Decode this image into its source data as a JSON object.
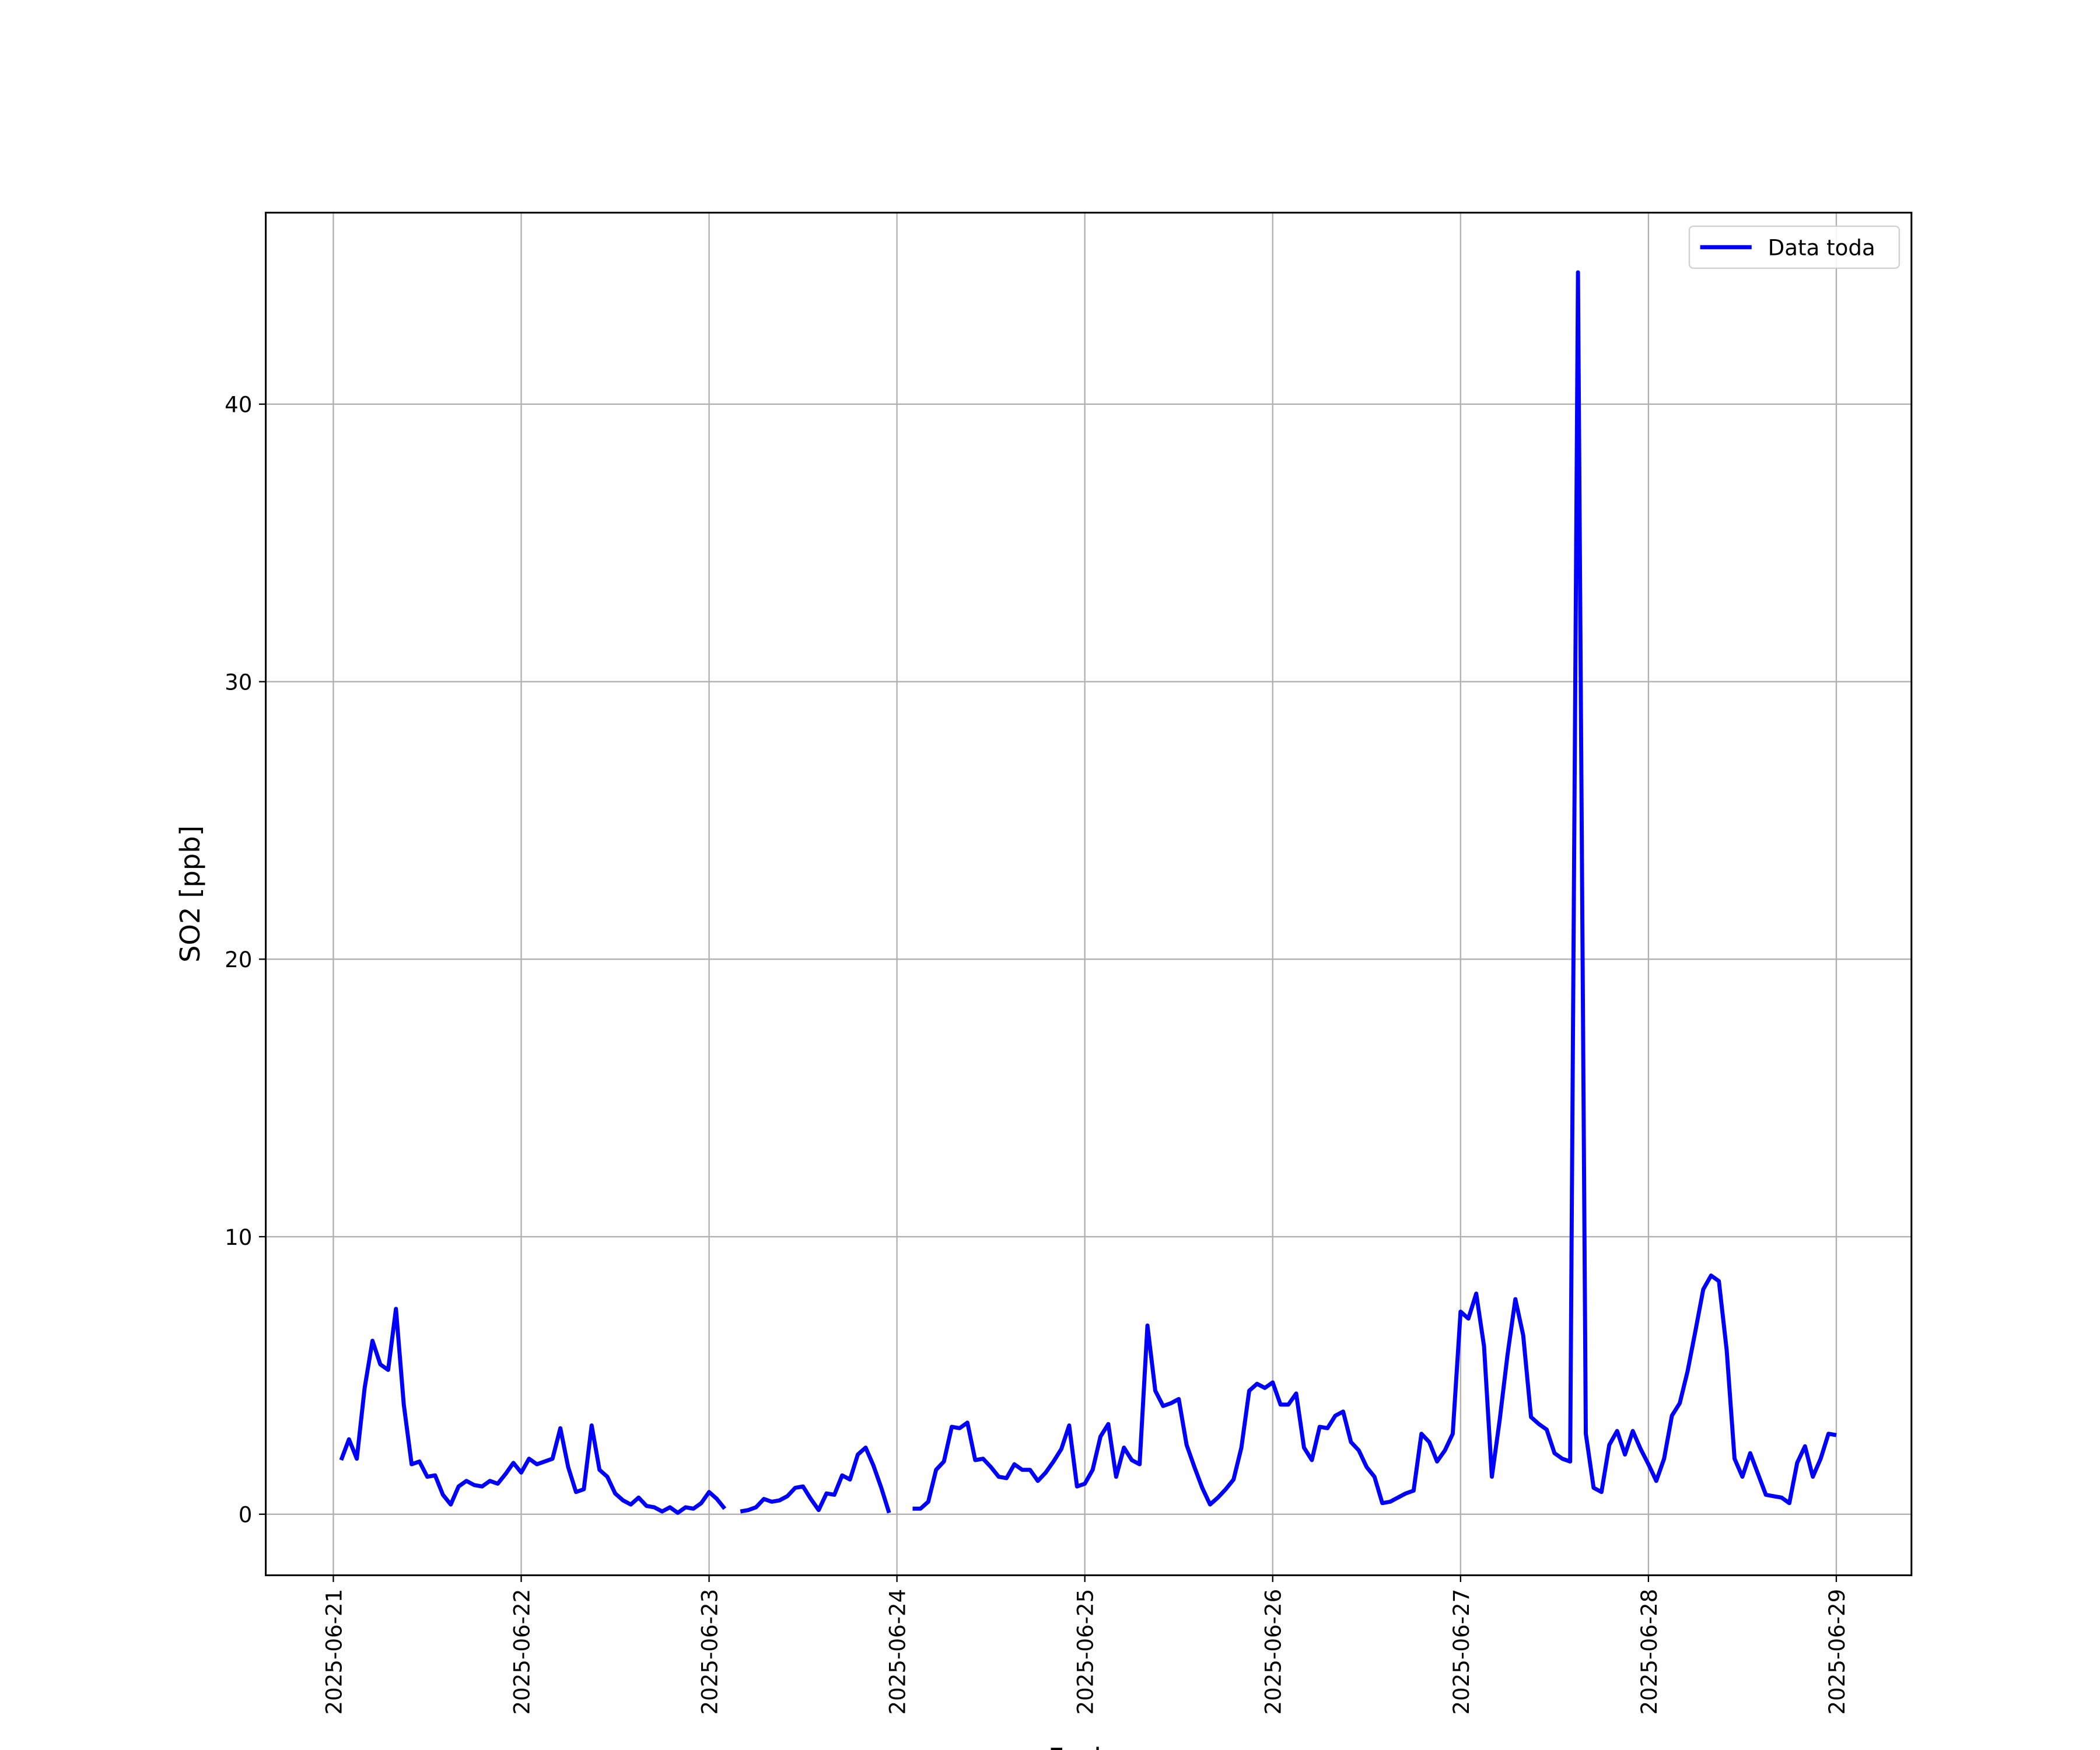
{
  "chart_data": {
    "type": "line",
    "xlabel": "Fecha",
    "ylabel": "SO2 [ppb]",
    "x": [
      "2025-06-21 01:00",
      "2025-06-21 02:00",
      "2025-06-21 03:00",
      "2025-06-21 04:00",
      "2025-06-21 05:00",
      "2025-06-21 06:00",
      "2025-06-21 07:00",
      "2025-06-21 08:00",
      "2025-06-21 09:00",
      "2025-06-21 10:00",
      "2025-06-21 11:00",
      "2025-06-21 12:00",
      "2025-06-21 13:00",
      "2025-06-21 14:00",
      "2025-06-21 15:00",
      "2025-06-21 16:00",
      "2025-06-21 17:00",
      "2025-06-21 18:00",
      "2025-06-21 19:00",
      "2025-06-21 20:00",
      "2025-06-21 21:00",
      "2025-06-21 22:00",
      "2025-06-21 23:00",
      "2025-06-22 00:00",
      "2025-06-22 01:00",
      "2025-06-22 02:00",
      "2025-06-22 03:00",
      "2025-06-22 04:00",
      "2025-06-22 05:00",
      "2025-06-22 06:00",
      "2025-06-22 07:00",
      "2025-06-22 08:00",
      "2025-06-22 09:00",
      "2025-06-22 10:00",
      "2025-06-22 11:00",
      "2025-06-22 12:00",
      "2025-06-22 13:00",
      "2025-06-22 14:00",
      "2025-06-22 15:00",
      "2025-06-22 16:00",
      "2025-06-22 17:00",
      "2025-06-22 18:00",
      "2025-06-22 19:00",
      "2025-06-22 20:00",
      "2025-06-22 21:00",
      "2025-06-22 22:00",
      "2025-06-22 23:00",
      "2025-06-23 00:00",
      "2025-06-23 01:00",
      "2025-06-23 02:00",
      "2025-06-23 03:00",
      "2025-06-23 04:00",
      "2025-06-23 05:00",
      "2025-06-23 06:00",
      "2025-06-23 07:00",
      "2025-06-23 08:00",
      "2025-06-23 09:00",
      "2025-06-23 10:00",
      "2025-06-23 11:00",
      "2025-06-23 12:00",
      "2025-06-23 13:00",
      "2025-06-23 14:00",
      "2025-06-23 15:00",
      "2025-06-23 16:00",
      "2025-06-23 17:00",
      "2025-06-23 18:00",
      "2025-06-23 19:00",
      "2025-06-23 20:00",
      "2025-06-23 21:00",
      "2025-06-23 22:00",
      "2025-06-23 23:00",
      "2025-06-24 00:00",
      "2025-06-24 01:00",
      "2025-06-24 02:00",
      "2025-06-24 03:00",
      "2025-06-24 04:00",
      "2025-06-24 05:00",
      "2025-06-24 06:00",
      "2025-06-24 07:00",
      "2025-06-24 08:00",
      "2025-06-24 09:00",
      "2025-06-24 10:00",
      "2025-06-24 11:00",
      "2025-06-24 12:00",
      "2025-06-24 13:00",
      "2025-06-24 14:00",
      "2025-06-24 15:00",
      "2025-06-24 16:00",
      "2025-06-24 17:00",
      "2025-06-24 18:00",
      "2025-06-24 19:00",
      "2025-06-24 20:00",
      "2025-06-24 21:00",
      "2025-06-24 22:00",
      "2025-06-24 23:00",
      "2025-06-25 00:00",
      "2025-06-25 01:00",
      "2025-06-25 02:00",
      "2025-06-25 03:00",
      "2025-06-25 04:00",
      "2025-06-25 05:00",
      "2025-06-25 06:00",
      "2025-06-25 07:00",
      "2025-06-25 08:00",
      "2025-06-25 09:00",
      "2025-06-25 10:00",
      "2025-06-25 11:00",
      "2025-06-25 12:00",
      "2025-06-25 13:00",
      "2025-06-25 14:00",
      "2025-06-25 15:00",
      "2025-06-25 16:00",
      "2025-06-25 17:00",
      "2025-06-25 18:00",
      "2025-06-25 19:00",
      "2025-06-25 20:00",
      "2025-06-25 21:00",
      "2025-06-25 22:00",
      "2025-06-25 23:00",
      "2025-06-26 00:00",
      "2025-06-26 01:00",
      "2025-06-26 02:00",
      "2025-06-26 03:00",
      "2025-06-26 04:00",
      "2025-06-26 05:00",
      "2025-06-26 06:00",
      "2025-06-26 07:00",
      "2025-06-26 08:00",
      "2025-06-26 09:00",
      "2025-06-26 10:00",
      "2025-06-26 11:00",
      "2025-06-26 12:00",
      "2025-06-26 13:00",
      "2025-06-26 14:00",
      "2025-06-26 15:00",
      "2025-06-26 16:00",
      "2025-06-26 17:00",
      "2025-06-26 18:00",
      "2025-06-26 19:00",
      "2025-06-26 20:00",
      "2025-06-26 21:00",
      "2025-06-26 22:00",
      "2025-06-26 23:00",
      "2025-06-27 00:00",
      "2025-06-27 01:00",
      "2025-06-27 02:00",
      "2025-06-27 03:00",
      "2025-06-27 04:00",
      "2025-06-27 05:00",
      "2025-06-27 06:00",
      "2025-06-27 07:00",
      "2025-06-27 08:00",
      "2025-06-27 09:00",
      "2025-06-27 10:00",
      "2025-06-27 11:00",
      "2025-06-27 12:00",
      "2025-06-27 13:00",
      "2025-06-27 14:00",
      "2025-06-27 15:00",
      "2025-06-27 16:00",
      "2025-06-27 17:00",
      "2025-06-27 18:00",
      "2025-06-27 19:00",
      "2025-06-27 20:00",
      "2025-06-27 21:00",
      "2025-06-27 22:00",
      "2025-06-27 23:00",
      "2025-06-28 00:00",
      "2025-06-28 01:00",
      "2025-06-28 02:00",
      "2025-06-28 03:00",
      "2025-06-28 04:00",
      "2025-06-28 05:00",
      "2025-06-28 06:00",
      "2025-06-28 07:00",
      "2025-06-28 08:00",
      "2025-06-28 09:00",
      "2025-06-28 10:00",
      "2025-06-28 11:00",
      "2025-06-28 12:00",
      "2025-06-28 13:00",
      "2025-06-28 14:00",
      "2025-06-28 15:00",
      "2025-06-28 16:00",
      "2025-06-28 17:00",
      "2025-06-28 18:00",
      "2025-06-28 19:00",
      "2025-06-28 20:00",
      "2025-06-28 21:00",
      "2025-06-28 22:00",
      "2025-06-28 23:00",
      "2025-06-29 00:00"
    ],
    "series": [
      {
        "name": "Data toda",
        "color": "#0000ff",
        "values": [
          1.95,
          2.7,
          2.0,
          4.55,
          6.25,
          5.4,
          5.2,
          7.4,
          3.95,
          1.8,
          1.9,
          1.35,
          1.4,
          0.7,
          0.35,
          1.0,
          1.2,
          1.05,
          1.0,
          1.2,
          1.1,
          1.45,
          1.85,
          1.5,
          2.0,
          1.8,
          1.9,
          2.0,
          3.1,
          1.7,
          0.8,
          0.9,
          3.2,
          1.6,
          1.35,
          0.75,
          0.5,
          0.35,
          0.6,
          0.3,
          0.25,
          0.1,
          0.25,
          0.05,
          0.25,
          0.2,
          0.4,
          0.8,
          0.55,
          0.2,
          null,
          0.1,
          0.15,
          0.25,
          0.55,
          0.45,
          0.5,
          0.65,
          0.95,
          1.0,
          0.55,
          0.15,
          0.75,
          0.7,
          1.4,
          1.25,
          2.15,
          2.4,
          1.75,
          0.95,
          0.05,
          null,
          null,
          0.2,
          0.2,
          0.45,
          1.6,
          1.9,
          3.15,
          3.1,
          3.3,
          1.95,
          2.0,
          1.7,
          1.35,
          1.3,
          1.8,
          1.6,
          1.6,
          1.2,
          1.5,
          1.9,
          2.35,
          3.2,
          1.0,
          1.1,
          1.6,
          2.8,
          3.25,
          1.35,
          2.4,
          1.95,
          1.8,
          6.8,
          4.45,
          3.9,
          4.0,
          4.15,
          2.5,
          1.7,
          0.95,
          0.35,
          0.6,
          0.9,
          1.25,
          2.4,
          4.45,
          4.7,
          4.55,
          4.75,
          3.95,
          3.95,
          4.35,
          2.4,
          1.95,
          3.15,
          3.1,
          3.55,
          3.7,
          2.6,
          2.3,
          1.7,
          1.35,
          0.4,
          0.45,
          0.6,
          0.75,
          0.85,
          2.9,
          2.6,
          1.9,
          2.3,
          2.9,
          7.3,
          7.05,
          7.95,
          6.05,
          1.35,
          3.4,
          5.75,
          7.75,
          6.45,
          3.5,
          3.25,
          3.05,
          2.2,
          2.0,
          1.9,
          44.75,
          2.9,
          0.95,
          0.8,
          2.5,
          3.0,
          2.15,
          3.0,
          2.35,
          1.8,
          1.2,
          2.0,
          3.55,
          4.0,
          5.15,
          6.6,
          8.1,
          8.6,
          8.4,
          5.9,
          2.0,
          1.35,
          2.2,
          1.45,
          0.7,
          0.65,
          0.6,
          0.4,
          1.85,
          2.45,
          1.35,
          2.0,
          2.9,
          2.85
        ]
      }
    ],
    "xlim": [
      "2025-06-20 15:22",
      "2025-06-29 09:36"
    ],
    "xticks": [
      "2025-06-21",
      "2025-06-22",
      "2025-06-23",
      "2025-06-24",
      "2025-06-25",
      "2025-06-26",
      "2025-06-27",
      "2025-06-28",
      "2025-06-29"
    ],
    "ylim": [
      -2.2,
      46.9
    ],
    "yticks": [
      0,
      10,
      20,
      30,
      40
    ],
    "grid": true,
    "legend": "upper right"
  }
}
